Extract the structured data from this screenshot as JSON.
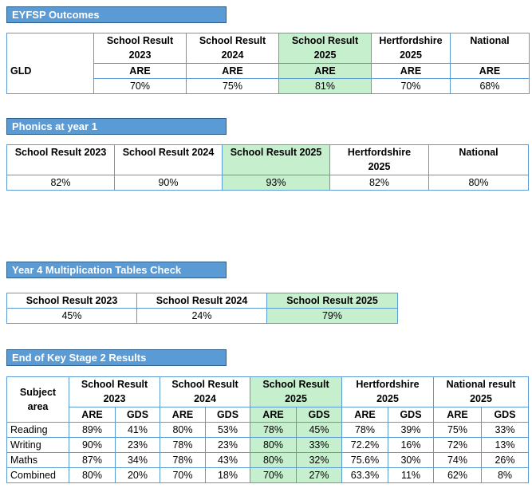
{
  "eyfsp": {
    "title": "EYFSP Outcomes",
    "row_label": "GLD",
    "headers": [
      "School Result\n2023",
      "School Result\n2024",
      "School Result\n2025",
      "Hertfordshire\n2025",
      "National"
    ],
    "measure": "ARE",
    "values": [
      "70%",
      "75%",
      "81%",
      "70%",
      "68%"
    ]
  },
  "phonics": {
    "title": "Phonics at year 1",
    "headers": [
      "School Result 2023",
      "School Result 2024",
      "School Result 2025",
      "Hertfordshire\n2025",
      "National"
    ],
    "values": [
      "82%",
      "90%",
      "93%",
      "82%",
      "80%"
    ]
  },
  "mtc": {
    "title": "Year 4 Multiplication Tables Check",
    "headers": [
      "School Result 2023",
      "School Result 2024",
      "School Result 2025"
    ],
    "values": [
      "45%",
      "24%",
      "79%"
    ]
  },
  "ks2": {
    "title": "End of Key Stage 2 Results",
    "subject_header": "Subject\narea",
    "groups": [
      "School Result\n2023",
      "School Result\n2024",
      "School Result\n2025",
      "Hertfordshire\n2025",
      "National result\n2025"
    ],
    "sub_headers": [
      "ARE",
      "GDS"
    ],
    "rows": [
      {
        "subject": "Reading",
        "values": [
          "89%",
          "41%",
          "80%",
          "53%",
          "78%",
          "45%",
          "78%",
          "39%",
          "75%",
          "33%"
        ]
      },
      {
        "subject": "Writing",
        "values": [
          "90%",
          "23%",
          "78%",
          "23%",
          "80%",
          "33%",
          "72.2%",
          "16%",
          "72%",
          "13%"
        ]
      },
      {
        "subject": "Maths",
        "values": [
          "87%",
          "34%",
          "78%",
          "43%",
          "80%",
          "32%",
          "75.6%",
          "30%",
          "74%",
          "26%"
        ]
      },
      {
        "subject": "Combined",
        "values": [
          "80%",
          "20%",
          "70%",
          "18%",
          "70%",
          "27%",
          "63.3%",
          "11%",
          "62%",
          "8%"
        ]
      }
    ]
  },
  "colors": {
    "header_bg": "#5b9bd5",
    "highlight": "#c6efce",
    "border": "#5b9bd5"
  }
}
